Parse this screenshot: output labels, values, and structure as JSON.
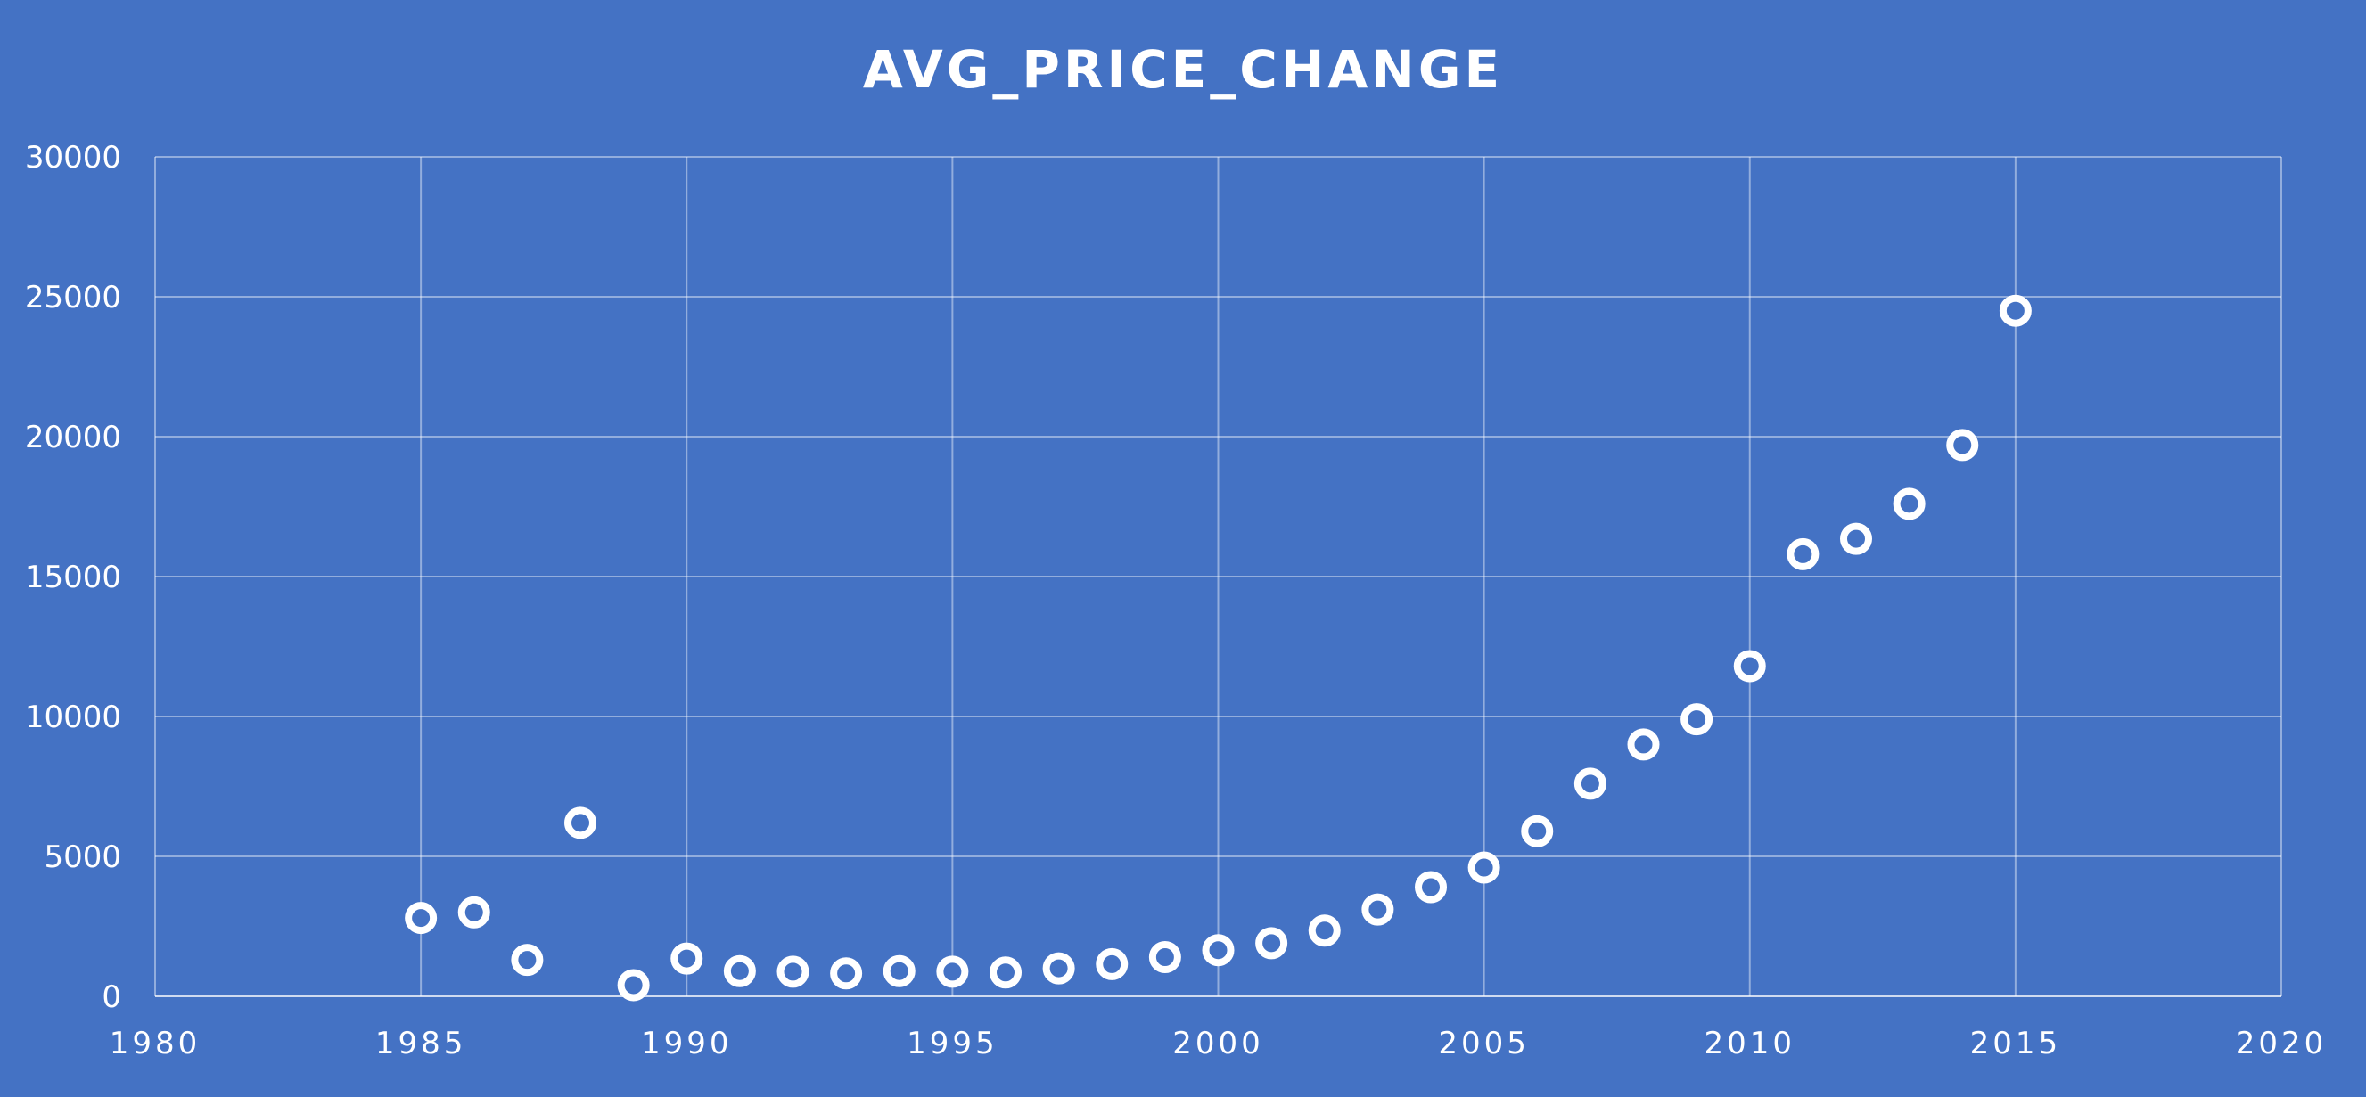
{
  "chart_data": {
    "type": "scatter",
    "title": "AVG_PRICE_CHANGE",
    "xlabel": "",
    "ylabel": "",
    "xlim": [
      1980,
      2020
    ],
    "ylim": [
      0,
      30000
    ],
    "x_ticks": [
      1980,
      1985,
      1990,
      1995,
      2000,
      2005,
      2010,
      2015,
      2020
    ],
    "y_ticks": [
      0,
      5000,
      10000,
      15000,
      20000,
      25000,
      30000
    ],
    "grid": true,
    "legend": "none",
    "colors": {
      "background": "#4472C4",
      "marker_stroke": "#FFFFFF",
      "marker_fill": "#4472C4",
      "text": "#FFFFFF"
    },
    "series": [
      {
        "x": [
          1985,
          1986,
          1987,
          1988,
          1989,
          1990,
          1991,
          1992,
          1993,
          1994,
          1995,
          1996,
          1997,
          1998,
          1999,
          2000,
          2001,
          2002,
          2003,
          2004,
          2005,
          2006,
          2007,
          2008,
          2009,
          2010,
          2011,
          2012,
          2013,
          2014,
          2015
        ],
        "y": [
          2800,
          3000,
          1300,
          6200,
          400,
          1350,
          900,
          880,
          820,
          900,
          880,
          850,
          1000,
          1150,
          1400,
          1650,
          1900,
          2350,
          3100,
          3900,
          4600,
          5900,
          7600,
          9000,
          9900,
          11800,
          15800,
          16350,
          17600,
          19700,
          24500
        ]
      }
    ]
  }
}
